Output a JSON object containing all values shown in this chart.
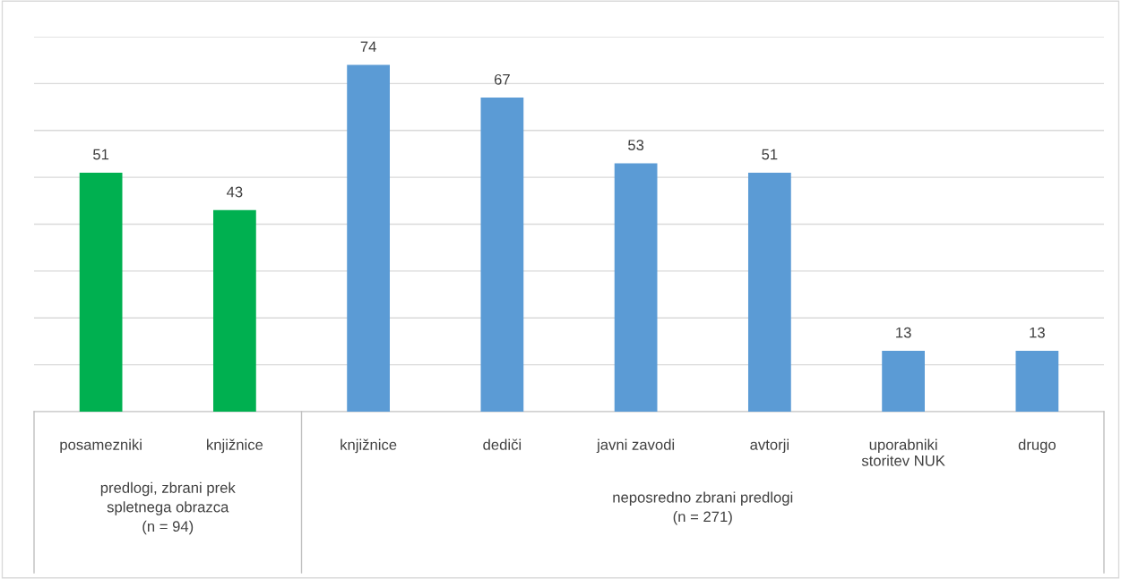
{
  "chart_data": {
    "type": "bar",
    "categories": [
      "posamezniki",
      "knjižnice",
      "knjižnice",
      "dediči",
      "javni zavodi",
      "avtorji",
      "uporabniki\nstoritev NUK",
      "drugo"
    ],
    "values": [
      51,
      43,
      74,
      67,
      53,
      51,
      13,
      13
    ],
    "colors": [
      "#00b050",
      "#00b050",
      "#5b9bd5",
      "#5b9bd5",
      "#5b9bd5",
      "#5b9bd5",
      "#5b9bd5",
      "#5b9bd5"
    ],
    "ylim": [
      0,
      80
    ],
    "yticks": [
      {
        "value": 0,
        "label": null
      },
      {
        "value": 10,
        "label": null
      },
      {
        "value": 20,
        "label": null
      },
      {
        "value": 30,
        "label": null
      },
      {
        "value": 40,
        "label": null
      },
      {
        "value": 50,
        "label": null
      },
      {
        "value": 60,
        "label": null
      },
      {
        "value": 70,
        "label": null
      },
      {
        "value": 80,
        "label": null
      }
    ],
    "grid": "y",
    "data_labels": true,
    "tick_labels": "x",
    "annotations": [
      "predlogi, zbrani prek\nspletnega obrazca\n(n = 94)",
      "neposredno zbrani predlogi\n(n = 271)"
    ]
  }
}
